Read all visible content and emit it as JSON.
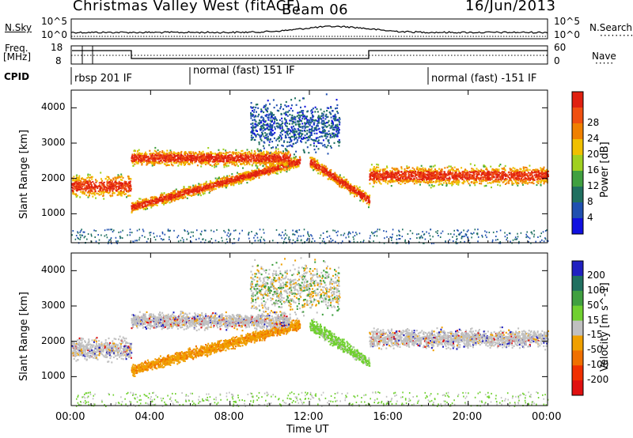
{
  "header": {
    "title": "Christmas Valley West (fitACF)",
    "beam": "Beam 06",
    "date": "16/Jun/2013"
  },
  "noise_panel": {
    "left_label": "N.Sky",
    "left_ticks": [
      "10^5",
      "10^0"
    ],
    "right_ticks": [
      "10^5",
      "10^0"
    ],
    "right_label": "N.Search"
  },
  "freq_panel": {
    "left_label_1": "Freq.",
    "left_label_2": "[MHz]",
    "left_ticks": [
      "18",
      "8"
    ],
    "right_ticks": [
      "60",
      "0"
    ],
    "right_label": "Nave"
  },
  "cpid": {
    "label": "CPID",
    "segments": [
      "rbsp 201 IF",
      "normal (fast) 151 IF",
      "normal (fast) -151 IF"
    ],
    "segment_start_hours": [
      0,
      6,
      18
    ]
  },
  "x_axis": {
    "label": "Time UT",
    "ticks": [
      "00:00",
      "04:00",
      "08:00",
      "12:00",
      "16:00",
      "20:00",
      "00:00"
    ],
    "range_hours": [
      0,
      24
    ]
  },
  "chart_data": [
    {
      "type": "heatmap",
      "parameter": "Power",
      "ylabel": "Slant Range [km]",
      "yticks": [
        1000,
        2000,
        3000,
        4000
      ],
      "ylim": [
        180,
        4500
      ],
      "colorbar_label": "Power [dB]",
      "colorbar_ticks": [
        4,
        8,
        12,
        16,
        20,
        24,
        28
      ],
      "colors": [
        "#1010e0",
        "#2050b0",
        "#207060",
        "#40a040",
        "#a0d020",
        "#f0c000",
        "#f08000",
        "#f05010",
        "#e02010"
      ],
      "scatter_bands": [
        {
          "t_start": 0.0,
          "t_end": 3.0,
          "range_center": 1800,
          "range_width": 700
        },
        {
          "t_start": 3.0,
          "t_end": 11.5,
          "range_center_start": 1200,
          "range_center_end": 2500,
          "range_width": 350
        },
        {
          "t_start": 3.0,
          "t_end": 11.0,
          "range_center": 2600,
          "range_width": 500
        },
        {
          "t_start": 9.0,
          "t_end": 13.5,
          "range_center": 3500,
          "range_width": 1600
        },
        {
          "t_start": 12.0,
          "t_end": 15.0,
          "range_center_start": 2500,
          "range_center_end": 1400,
          "range_width": 400
        },
        {
          "t_start": 15.0,
          "t_end": 24.0,
          "range_center": 2100,
          "range_width": 600
        }
      ]
    },
    {
      "type": "heatmap",
      "parameter": "Velocity",
      "ylabel": "Slant Range [km]",
      "yticks": [
        1000,
        2000,
        3000,
        4000
      ],
      "ylim": [
        180,
        4500
      ],
      "colorbar_label": "Velocity [m s^-1]",
      "colorbar_ticks": [
        200,
        100,
        50,
        15,
        -15,
        -50,
        -100,
        -200
      ],
      "colors": [
        "#2020c0",
        "#207060",
        "#40a040",
        "#70d030",
        "#c0c0c0",
        "#f0a000",
        "#f07000",
        "#f03000",
        "#e01010"
      ]
    }
  ]
}
